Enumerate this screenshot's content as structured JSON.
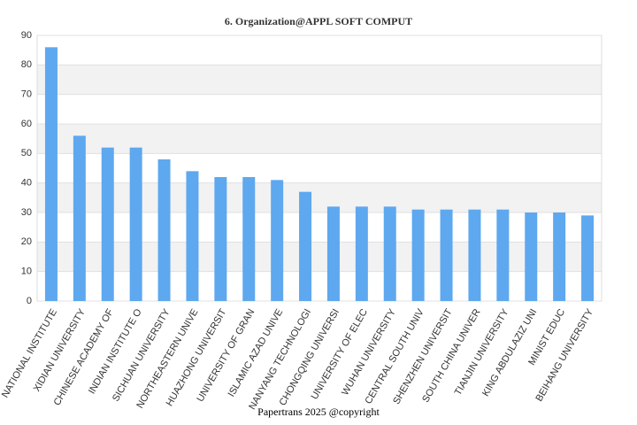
{
  "chart_data": {
    "type": "bar",
    "title": "6. Organization@APPL SOFT COMPUT",
    "categories": [
      "NATIONAL INSTITUTE",
      "XIDIAN UNIVERSITY",
      "CHINESE ACADEMY OF",
      "INDIAN INSTITUTE O",
      "SICHUAN UNIVERSITY",
      "NORTHEASTERN UNIVE",
      "HUAZHONG UNIVERSIT",
      "UNIVERSITY OF GRAN",
      "ISLAMIC AZAD UNIVE",
      "NANYANG TECHNOLOGI",
      "CHONGQING UNIVERSI",
      "UNIVERSITY OF ELEC",
      "WUHAN UNIVERSITY",
      "CENTRAL SOUTH UNIV",
      "SHENZHEN UNIVERSIT",
      "SOUTH CHINA UNIVER",
      "TIANJIN UNIVERSITY",
      "KING ABDULAZIZ UNI",
      "MINIST EDUC",
      "BEIHANG UNIVERSITY"
    ],
    "values": [
      86,
      56,
      52,
      52,
      48,
      44,
      42,
      42,
      41,
      37,
      32,
      32,
      32,
      31,
      31,
      31,
      31,
      30,
      30,
      29
    ],
    "color": "#5ea8ef",
    "ylim": [
      0,
      90
    ],
    "yticks": [
      0,
      10,
      20,
      30,
      40,
      50,
      60,
      70,
      80,
      90
    ],
    "grid": true
  },
  "footer": "Papertrans 2025 @copyright"
}
